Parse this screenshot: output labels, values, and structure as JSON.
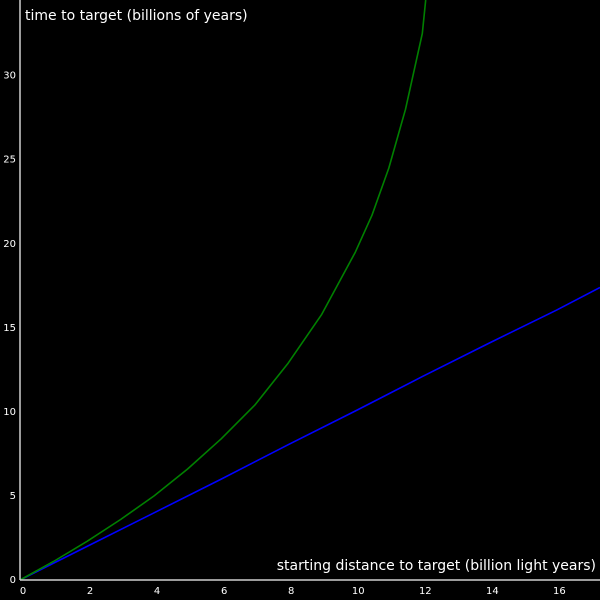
{
  "chart_data": {
    "type": "line",
    "title": "",
    "xlabel": "starting distance to target (billion light years)",
    "ylabel": "time to target (billions of years)",
    "xlim": [
      0,
      17.3
    ],
    "ylim": [
      0,
      34.5
    ],
    "x_ticks": [
      0,
      2,
      4,
      6,
      8,
      10,
      12,
      14,
      16
    ],
    "y_ticks": [
      0,
      5,
      10,
      15,
      20,
      25,
      30
    ],
    "grid": false,
    "legend": "none",
    "colors": {
      "background": "#000000",
      "axis": "#cfcfcf",
      "text": "#ffffff"
    },
    "series": [
      {
        "color": "#0000ff",
        "x": [
          0,
          2,
          4,
          6,
          8,
          10,
          12,
          14,
          16,
          17.3
        ],
        "y": [
          0,
          2.0,
          4.0,
          6.0,
          8.05,
          10.05,
          12.1,
          14.1,
          16.05,
          17.4
        ]
      },
      {
        "color": "#008000",
        "x": [
          0,
          1,
          2,
          3,
          4,
          5,
          6,
          7,
          8,
          9,
          10,
          10.5,
          11,
          11.5,
          12,
          12.1
        ],
        "y": [
          0,
          1.1,
          2.3,
          3.6,
          5.0,
          6.6,
          8.4,
          10.4,
          12.9,
          15.8,
          19.5,
          21.7,
          24.5,
          28.0,
          32.5,
          34.5
        ]
      }
    ]
  }
}
